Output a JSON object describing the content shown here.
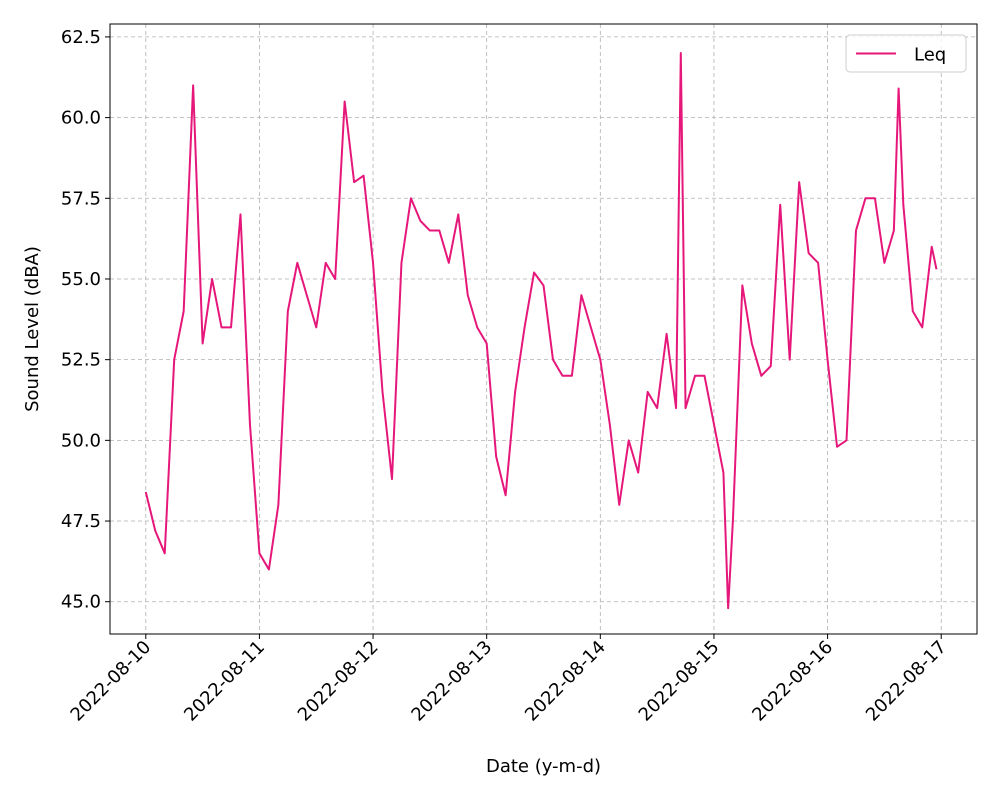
{
  "chart_data": {
    "type": "line",
    "xlabel": "Date (y-m-d)",
    "ylabel": "Sound Level (dBA)",
    "x": [
      "2022-08-10T00:00",
      "2022-08-10T02:00",
      "2022-08-10T04:00",
      "2022-08-10T06:00",
      "2022-08-10T08:00",
      "2022-08-10T10:00",
      "2022-08-10T12:00",
      "2022-08-10T14:00",
      "2022-08-10T16:00",
      "2022-08-10T18:00",
      "2022-08-10T20:00",
      "2022-08-10T22:00",
      "2022-08-11T00:00",
      "2022-08-11T02:00",
      "2022-08-11T04:00",
      "2022-08-11T06:00",
      "2022-08-11T08:00",
      "2022-08-11T10:00",
      "2022-08-11T12:00",
      "2022-08-11T14:00",
      "2022-08-11T16:00",
      "2022-08-11T18:00",
      "2022-08-11T20:00",
      "2022-08-11T22:00",
      "2022-08-12T00:00",
      "2022-08-12T02:00",
      "2022-08-12T04:00",
      "2022-08-12T06:00",
      "2022-08-12T08:00",
      "2022-08-12T10:00",
      "2022-08-12T12:00",
      "2022-08-12T14:00",
      "2022-08-12T16:00",
      "2022-08-12T18:00",
      "2022-08-12T20:00",
      "2022-08-12T22:00",
      "2022-08-13T00:00",
      "2022-08-13T02:00",
      "2022-08-13T04:00",
      "2022-08-13T06:00",
      "2022-08-13T08:00",
      "2022-08-13T10:00",
      "2022-08-13T12:00",
      "2022-08-13T14:00",
      "2022-08-13T16:00",
      "2022-08-13T18:00",
      "2022-08-13T20:00",
      "2022-08-13T22:00",
      "2022-08-14T00:00",
      "2022-08-14T02:00",
      "2022-08-14T04:00",
      "2022-08-14T06:00",
      "2022-08-14T08:00",
      "2022-08-14T10:00",
      "2022-08-14T12:00",
      "2022-08-14T14:00",
      "2022-08-14T16:00",
      "2022-08-14T17:00",
      "2022-08-14T18:00",
      "2022-08-14T20:00",
      "2022-08-14T22:00",
      "2022-08-15T00:00",
      "2022-08-15T02:00",
      "2022-08-15T03:00",
      "2022-08-15T04:00",
      "2022-08-15T06:00",
      "2022-08-15T08:00",
      "2022-08-15T10:00",
      "2022-08-15T12:00",
      "2022-08-15T14:00",
      "2022-08-15T16:00",
      "2022-08-15T18:00",
      "2022-08-15T20:00",
      "2022-08-15T22:00",
      "2022-08-16T00:00",
      "2022-08-16T02:00",
      "2022-08-16T04:00",
      "2022-08-16T06:00",
      "2022-08-16T08:00",
      "2022-08-16T10:00",
      "2022-08-16T12:00",
      "2022-08-16T14:00",
      "2022-08-16T15:00",
      "2022-08-16T16:00",
      "2022-08-16T18:00",
      "2022-08-16T20:00",
      "2022-08-16T22:00",
      "2022-08-16T23:00"
    ],
    "series": [
      {
        "name": "Leq",
        "color": "#e6177a",
        "values": [
          48.4,
          47.2,
          46.5,
          52.5,
          54.0,
          61.0,
          53.0,
          55.0,
          53.5,
          53.5,
          57.0,
          50.5,
          46.5,
          46.0,
          48.0,
          54.0,
          55.5,
          54.5,
          53.5,
          55.5,
          55.0,
          60.5,
          58.0,
          58.2,
          55.5,
          51.5,
          48.8,
          55.5,
          57.5,
          56.8,
          56.5,
          56.5,
          55.5,
          57.0,
          54.5,
          53.5,
          53.0,
          49.5,
          48.3,
          51.5,
          53.5,
          55.2,
          54.8,
          52.5,
          52.0,
          52.0,
          54.5,
          53.5,
          52.5,
          50.5,
          48.0,
          50.0,
          49.0,
          51.5,
          51.0,
          53.3,
          51.0,
          62.0,
          51.0,
          52.0,
          52.0,
          50.5,
          49.0,
          44.8,
          47.5,
          54.8,
          53.0,
          52.0,
          52.3,
          57.3,
          52.5,
          58.0,
          55.8,
          55.5,
          52.5,
          49.8,
          50.0,
          56.5,
          57.5,
          57.5,
          55.5,
          56.5,
          60.9,
          57.3,
          54.0,
          53.5,
          56.0,
          55.3
        ]
      }
    ],
    "xticks": [
      "2022-08-10",
      "2022-08-11",
      "2022-08-12",
      "2022-08-13",
      "2022-08-14",
      "2022-08-15",
      "2022-08-16",
      "2022-08-17"
    ],
    "ylim": [
      44.0,
      62.9
    ],
    "yticks": [
      {
        "value": 45,
        "label": "45.0"
      },
      47.5,
      {
        "value": 50,
        "label": "50.0"
      },
      52.5,
      {
        "value": 55,
        "label": "55.0"
      },
      57.5,
      {
        "value": 60,
        "label": "60.0"
      },
      62.5
    ],
    "grid": true,
    "legend": "upper right"
  }
}
